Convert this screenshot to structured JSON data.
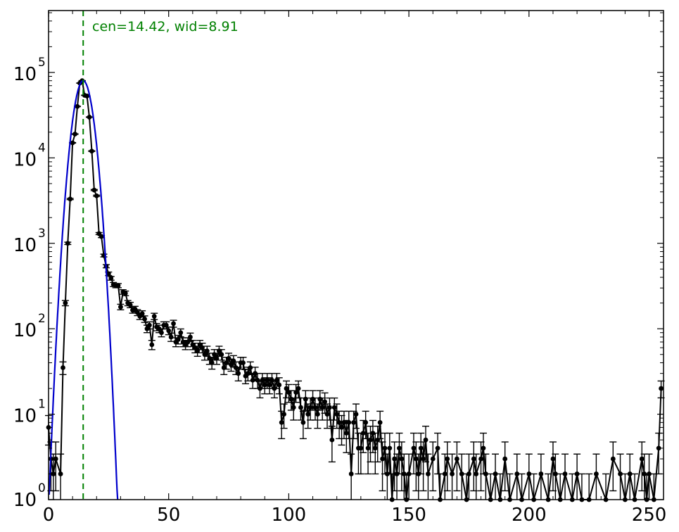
{
  "chart_data": {
    "type": "scatter",
    "title": "",
    "xlabel": "",
    "ylabel": "",
    "xlim": [
      0,
      256
    ],
    "ylim": [
      1,
      530000
    ],
    "yscale": "log",
    "grid": false,
    "legend": "none",
    "x_ticks": [
      "0",
      "50",
      "100",
      "150",
      "200",
      "250"
    ],
    "y_ticks": [
      {
        "base": "10",
        "exp": "0"
      },
      {
        "base": "10",
        "exp": "1"
      },
      {
        "base": "10",
        "exp": "2"
      },
      {
        "base": "10",
        "exp": "3"
      },
      {
        "base": "10",
        "exp": "4"
      },
      {
        "base": "10",
        "exp": "5"
      }
    ],
    "annotation": {
      "text": "cen=14.42, wid=8.91",
      "color": "#008000"
    },
    "fit": {
      "type": "gaussian",
      "center": 14.42,
      "amplitude": 80000,
      "sigma": 3.0,
      "color": "#0000cc"
    },
    "center_line": {
      "x": 14.42,
      "color": "#008000",
      "style": "dashed"
    },
    "series": [
      {
        "color": "#000000",
        "points": [
          [
            0,
            7
          ],
          [
            1,
            3
          ],
          [
            2,
            2
          ],
          [
            3,
            3
          ],
          [
            5,
            2
          ],
          [
            6,
            35
          ],
          [
            7,
            200
          ],
          [
            8,
            1000
          ],
          [
            9,
            3300
          ],
          [
            10,
            15000
          ],
          [
            11,
            19000
          ],
          [
            12,
            40000
          ],
          [
            13,
            75000
          ],
          [
            14,
            80000
          ],
          [
            15,
            54000
          ],
          [
            16,
            53000
          ],
          [
            17,
            30000
          ],
          [
            18,
            12000
          ],
          [
            19,
            4200
          ],
          [
            20,
            3600
          ],
          [
            21,
            1300
          ],
          [
            22,
            1200
          ],
          [
            23,
            720
          ],
          [
            24,
            540
          ],
          [
            25,
            440
          ],
          [
            26,
            390
          ],
          [
            27,
            330
          ],
          [
            28,
            320
          ],
          [
            29,
            320
          ],
          [
            30,
            180
          ],
          [
            31,
            270
          ],
          [
            32,
            260
          ],
          [
            33,
            200
          ],
          [
            34,
            190
          ],
          [
            35,
            165
          ],
          [
            36,
            170
          ],
          [
            37,
            155
          ],
          [
            38,
            140
          ],
          [
            39,
            150
          ],
          [
            40,
            130
          ],
          [
            41,
            100
          ],
          [
            42,
            110
          ],
          [
            43,
            65
          ],
          [
            44,
            140
          ],
          [
            45,
            105
          ],
          [
            46,
            100
          ],
          [
            47,
            90
          ],
          [
            48,
            110
          ],
          [
            49,
            110
          ],
          [
            50,
            95
          ],
          [
            51,
            80
          ],
          [
            52,
            115
          ],
          [
            53,
            70
          ],
          [
            54,
            75
          ],
          [
            55,
            90
          ],
          [
            56,
            70
          ],
          [
            57,
            65
          ],
          [
            58,
            70
          ],
          [
            59,
            80
          ],
          [
            60,
            65
          ],
          [
            61,
            60
          ],
          [
            62,
            55
          ],
          [
            63,
            65
          ],
          [
            64,
            60
          ],
          [
            65,
            50
          ],
          [
            66,
            55
          ],
          [
            67,
            45
          ],
          [
            68,
            40
          ],
          [
            69,
            50
          ],
          [
            70,
            45
          ],
          [
            71,
            55
          ],
          [
            72,
            50
          ],
          [
            73,
            35
          ],
          [
            74,
            40
          ],
          [
            75,
            45
          ],
          [
            76,
            38
          ],
          [
            77,
            42
          ],
          [
            78,
            35
          ],
          [
            79,
            30
          ],
          [
            80,
            40
          ],
          [
            81,
            40
          ],
          [
            82,
            28
          ],
          [
            83,
            30
          ],
          [
            84,
            35
          ],
          [
            85,
            25
          ],
          [
            86,
            30
          ],
          [
            87,
            25
          ],
          [
            88,
            20
          ],
          [
            89,
            25
          ],
          [
            90,
            22
          ],
          [
            91,
            25
          ],
          [
            92,
            22
          ],
          [
            93,
            25
          ],
          [
            94,
            20
          ],
          [
            95,
            25
          ],
          [
            96,
            22
          ],
          [
            97,
            8
          ],
          [
            98,
            10
          ],
          [
            99,
            20
          ],
          [
            100,
            18
          ],
          [
            101,
            15
          ],
          [
            102,
            12
          ],
          [
            103,
            18
          ],
          [
            104,
            20
          ],
          [
            105,
            12
          ],
          [
            106,
            8
          ],
          [
            107,
            15
          ],
          [
            108,
            10
          ],
          [
            109,
            12
          ],
          [
            110,
            15
          ],
          [
            111,
            12
          ],
          [
            112,
            10
          ],
          [
            113,
            15
          ],
          [
            114,
            12
          ],
          [
            115,
            14
          ],
          [
            116,
            10
          ],
          [
            117,
            12
          ],
          [
            118,
            5
          ],
          [
            119,
            12
          ],
          [
            120,
            10
          ],
          [
            121,
            8
          ],
          [
            122,
            7
          ],
          [
            123,
            8
          ],
          [
            124,
            6
          ],
          [
            125,
            8
          ],
          [
            126,
            2
          ],
          [
            127,
            8
          ],
          [
            128,
            10
          ],
          [
            129,
            4
          ],
          [
            130,
            4
          ],
          [
            131,
            6
          ],
          [
            132,
            8
          ],
          [
            133,
            4
          ],
          [
            134,
            5
          ],
          [
            135,
            6
          ],
          [
            136,
            4
          ],
          [
            137,
            5
          ],
          [
            138,
            8
          ],
          [
            139,
            3
          ],
          [
            140,
            4
          ],
          [
            141,
            2
          ],
          [
            142,
            4
          ],
          [
            143,
            1
          ],
          [
            144,
            3
          ],
          [
            145,
            2
          ],
          [
            146,
            4
          ],
          [
            147,
            3
          ],
          [
            148,
            2
          ],
          [
            149,
            1
          ],
          [
            150,
            2
          ],
          [
            152,
            4
          ],
          [
            153,
            3
          ],
          [
            154,
            2
          ],
          [
            155,
            4
          ],
          [
            156,
            3
          ],
          [
            157,
            5
          ],
          [
            158,
            2
          ],
          [
            160,
            3
          ],
          [
            162,
            4
          ],
          [
            163,
            1
          ],
          [
            165,
            2
          ],
          [
            166,
            3
          ],
          [
            168,
            2
          ],
          [
            170,
            3
          ],
          [
            172,
            2
          ],
          [
            174,
            1
          ],
          [
            175,
            2
          ],
          [
            177,
            3
          ],
          [
            178,
            2
          ],
          [
            180,
            3
          ],
          [
            181,
            4
          ],
          [
            182,
            2
          ],
          [
            184,
            1
          ],
          [
            186,
            2
          ],
          [
            188,
            1
          ],
          [
            190,
            3
          ],
          [
            192,
            1
          ],
          [
            195,
            2
          ],
          [
            197,
            1
          ],
          [
            200,
            2
          ],
          [
            202,
            1
          ],
          [
            205,
            2
          ],
          [
            208,
            1
          ],
          [
            210,
            3
          ],
          [
            211,
            2
          ],
          [
            213,
            1
          ],
          [
            215,
            2
          ],
          [
            218,
            1
          ],
          [
            220,
            2
          ],
          [
            222,
            1
          ],
          [
            225,
            1
          ],
          [
            228,
            2
          ],
          [
            232,
            1
          ],
          [
            235,
            3
          ],
          [
            238,
            2
          ],
          [
            240,
            1
          ],
          [
            242,
            2
          ],
          [
            244,
            1
          ],
          [
            247,
            3
          ],
          [
            248,
            2
          ],
          [
            249,
            1
          ],
          [
            250,
            2
          ],
          [
            252,
            1
          ],
          [
            254,
            4
          ],
          [
            255,
            20
          ]
        ]
      }
    ]
  }
}
